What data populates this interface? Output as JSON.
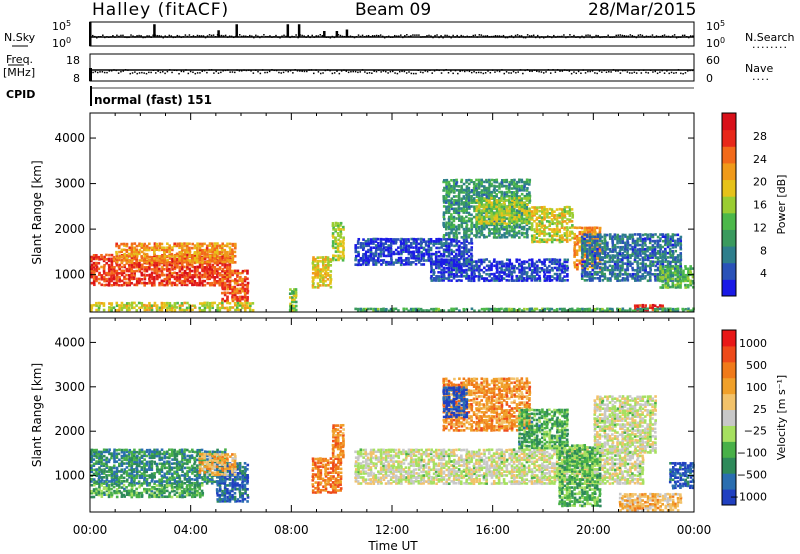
{
  "header": {
    "station": "Halley (fitACF)",
    "beam": "Beam 09",
    "date": "28/Mar/2015"
  },
  "strip": {
    "nsky_label": "N.Sky",
    "nsearch_label": "N.Search",
    "nsearch_dots": "........",
    "freq_label": "Freq.",
    "freq_unit": "[MHz]",
    "nave_label": "Nave",
    "nave_dots": "....",
    "cpid_label": "CPID",
    "cpid_text": "normal (fast) 151",
    "nsky_ticks": [
      "10^5",
      "10^0"
    ],
    "nsearch_ticks": [
      "10^5",
      "10^0"
    ],
    "freq_ticks": [
      "18",
      "8"
    ],
    "nave_ticks": [
      "60",
      "0"
    ],
    "nsky_spikes": [
      {
        "t": 2.55,
        "h": 0.85
      },
      {
        "t": 5.1,
        "h": 0.45
      },
      {
        "t": 5.82,
        "h": 0.85
      },
      {
        "t": 7.85,
        "h": 0.85
      },
      {
        "t": 8.3,
        "h": 0.85
      },
      {
        "t": 9.3,
        "h": 0.4
      },
      {
        "t": 9.8,
        "h": 0.4
      },
      {
        "t": 10.2,
        "h": 0.5
      }
    ]
  },
  "chart_data": [
    {
      "type": "heatmap",
      "name": "power",
      "ylabel": "Slant Range [km]",
      "ylim": [
        180,
        4550
      ],
      "xlim": [
        0,
        24
      ],
      "y_ticks": [
        1000,
        2000,
        3000,
        4000
      ],
      "colorbar_label": "Power [dB]",
      "colorbar_ticks": [
        4,
        8,
        12,
        16,
        20,
        24,
        28
      ],
      "colorbar_colors": [
        "#1a1ae6",
        "#2a52b8",
        "#2e7e8c",
        "#3a9a5e",
        "#4cb84a",
        "#9acd32",
        "#e6c21a",
        "#f09a1a",
        "#f26a1a",
        "#e8281a",
        "#d8101a"
      ],
      "regions": [
        {
          "t0": 0.0,
          "t1": 5.6,
          "r0": 750,
          "r1": 1450,
          "level": 0.85
        },
        {
          "t0": 1.0,
          "t1": 5.8,
          "r0": 1250,
          "r1": 1700,
          "level": 0.7
        },
        {
          "t0": 5.2,
          "t1": 6.3,
          "r0": 400,
          "r1": 1100,
          "level": 0.8
        },
        {
          "t0": 0.0,
          "t1": 6.5,
          "r0": 200,
          "r1": 400,
          "level": 0.55
        },
        {
          "t0": 7.9,
          "t1": 8.2,
          "r0": 200,
          "r1": 700,
          "level": 0.45
        },
        {
          "t0": 8.8,
          "t1": 9.6,
          "r0": 700,
          "r1": 1400,
          "level": 0.6
        },
        {
          "t0": 9.6,
          "t1": 10.1,
          "r0": 1300,
          "r1": 2150,
          "level": 0.5
        },
        {
          "t0": 10.5,
          "t1": 15.2,
          "r0": 1200,
          "r1": 1800,
          "level": 0.1
        },
        {
          "t0": 14.0,
          "t1": 17.5,
          "r0": 1800,
          "r1": 3100,
          "level": 0.3
        },
        {
          "t0": 15.3,
          "t1": 17.5,
          "r0": 2100,
          "r1": 2700,
          "level": 0.5
        },
        {
          "t0": 17.5,
          "t1": 19.2,
          "r0": 1700,
          "r1": 2500,
          "level": 0.55
        },
        {
          "t0": 19.2,
          "t1": 20.3,
          "r0": 1100,
          "r1": 2050,
          "level": 0.7
        },
        {
          "t0": 13.5,
          "t1": 19.0,
          "r0": 850,
          "r1": 1350,
          "level": 0.1
        },
        {
          "t0": 19.5,
          "t1": 23.5,
          "r0": 850,
          "r1": 1900,
          "level": 0.2
        },
        {
          "t0": 21.6,
          "t1": 22.8,
          "r0": 200,
          "r1": 350,
          "level": 0.9
        },
        {
          "t0": 22.6,
          "t1": 24.0,
          "r0": 700,
          "r1": 1200,
          "level": 0.4
        },
        {
          "t0": 10.5,
          "t1": 24.0,
          "r0": 190,
          "r1": 260,
          "level": 0.35
        }
      ]
    },
    {
      "type": "heatmap",
      "name": "velocity",
      "xlabel": "Time UT",
      "ylabel": "Slant Range [km]",
      "ylim": [
        180,
        4550
      ],
      "xlim": [
        0,
        24
      ],
      "y_ticks": [
        1000,
        2000,
        3000,
        4000
      ],
      "x_tick_labels": [
        "00:00",
        "04:00",
        "08:00",
        "12:00",
        "16:00",
        "20:00",
        "00:00"
      ],
      "colorbar_label": "Velocity [m s⁻¹]",
      "colorbar_ticks": [
        "1000",
        "500",
        "100",
        "25",
        "−25",
        "−100",
        "−500",
        "−1000"
      ],
      "colorbar_colors": [
        "#2040c0",
        "#2a6eb0",
        "#2e8a5a",
        "#48b048",
        "#a6e060",
        "#c8c8c8",
        "#f2c26a",
        "#f0a02a",
        "#f07a1a",
        "#ee4a1a",
        "#e81818"
      ],
      "regions": [
        {
          "t0": 0.0,
          "t1": 5.4,
          "r0": 800,
          "r1": 1600,
          "level": 0.22
        },
        {
          "t0": 0.0,
          "t1": 4.5,
          "r0": 500,
          "r1": 800,
          "level": 0.3
        },
        {
          "t0": 5.0,
          "t1": 6.3,
          "r0": 400,
          "r1": 1300,
          "level": 0.12
        },
        {
          "t0": 4.3,
          "t1": 5.8,
          "r0": 1000,
          "r1": 1500,
          "level": 0.65
        },
        {
          "t0": 8.8,
          "t1": 10.0,
          "r0": 600,
          "r1": 1400,
          "level": 0.78
        },
        {
          "t0": 9.6,
          "t1": 10.1,
          "r0": 1400,
          "r1": 2150,
          "level": 0.75
        },
        {
          "t0": 10.5,
          "t1": 22.0,
          "r0": 800,
          "r1": 1600,
          "level": 0.48
        },
        {
          "t0": 14.0,
          "t1": 17.5,
          "r0": 2000,
          "r1": 3200,
          "level": 0.72
        },
        {
          "t0": 14.0,
          "t1": 15.0,
          "r0": 2300,
          "r1": 3000,
          "level": 0.05
        },
        {
          "t0": 17.0,
          "t1": 19.0,
          "r0": 1600,
          "r1": 2500,
          "level": 0.3
        },
        {
          "t0": 18.6,
          "t1": 20.3,
          "r0": 300,
          "r1": 1700,
          "level": 0.32
        },
        {
          "t0": 20.0,
          "t1": 22.5,
          "r0": 1500,
          "r1": 2800,
          "level": 0.48
        },
        {
          "t0": 21.0,
          "t1": 23.5,
          "r0": 200,
          "r1": 600,
          "level": 0.62
        },
        {
          "t0": 23.0,
          "t1": 24.0,
          "r0": 700,
          "r1": 1300,
          "level": 0.08
        }
      ]
    }
  ]
}
